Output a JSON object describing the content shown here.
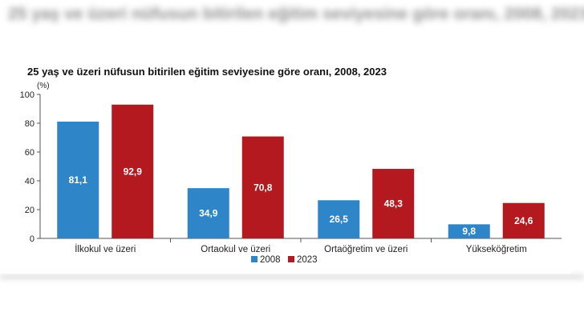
{
  "chart_data": {
    "type": "bar",
    "title": "25 yaş ve üzeri nüfusun bitirilen eğitim seviyesine göre oranı, 2008, 2023",
    "ylabel": "(%)",
    "xlabel": "",
    "ylim": [
      0,
      100
    ],
    "yticks": [
      0,
      20,
      40,
      60,
      80,
      100
    ],
    "categories": [
      "İlkokul ve üzeri",
      "Ortaokul ve üzeri",
      "Ortaöğretim ve üzeri",
      "Yükseköğretim"
    ],
    "series": [
      {
        "name": "2008",
        "color": "#2e86c8",
        "values": [
          81.1,
          34.9,
          26.5,
          9.8
        ],
        "labels": [
          "81,1",
          "34,9",
          "26,5",
          "9,8"
        ]
      },
      {
        "name": "2023",
        "color": "#b3191e",
        "values": [
          92.9,
          70.8,
          48.3,
          24.6
        ],
        "labels": [
          "92,9",
          "70,8",
          "48,3",
          "24,6"
        ]
      }
    ],
    "legend_position": "bottom-center",
    "grid": false
  }
}
